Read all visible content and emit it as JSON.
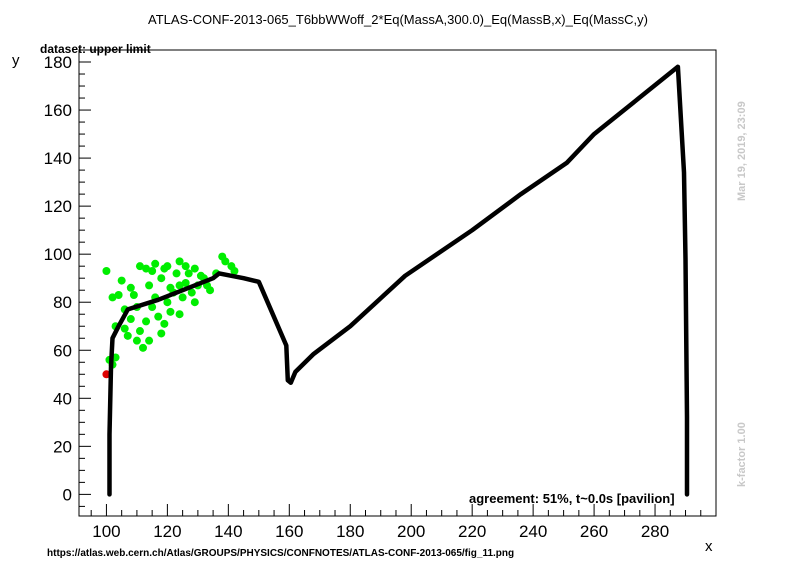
{
  "header": {
    "title": "ATLAS-CONF-2013-065_T6bbWWoff_2*Eq(MassA,300.0)_Eq(MassB,x)_Eq(MassC,y)",
    "dataset": "dataset: upper limit"
  },
  "footer": {
    "agreement": "agreement: 51%, t~0.0s [pavilion]",
    "url": "https://atlas.web.cern.ch/Atlas/GROUPS/PHYSICS/CONFNOTES/ATLAS-CONF-2013-065/fig_11.png"
  },
  "side": {
    "timestamp": "Mar 19, 2019, 23:09",
    "kfactor": "k-factor 1.00"
  },
  "colors": {
    "allowed_points": "#00ee00",
    "excluded_points": "#dd0000",
    "limit_curve": "#000000",
    "side_text": "#c8c8c8"
  },
  "chart_data": {
    "type": "scatter",
    "xlabel": "x",
    "ylabel": "y",
    "xlim": [
      91,
      300
    ],
    "ylim": [
      -9,
      185
    ],
    "x_ticks": [
      100,
      120,
      140,
      160,
      180,
      200,
      220,
      240,
      260,
      280
    ],
    "y_ticks": [
      0,
      20,
      40,
      60,
      80,
      100,
      120,
      140,
      160,
      180
    ],
    "grid": false,
    "series": [
      {
        "kind": "points",
        "color": "#00ee00",
        "points": [
          [
            100,
            93
          ],
          [
            101,
            56
          ],
          [
            102,
            54
          ],
          [
            103,
            57
          ],
          [
            103,
            70
          ],
          [
            102,
            82
          ],
          [
            104,
            83
          ],
          [
            105,
            89
          ],
          [
            106,
            77
          ],
          [
            106,
            69
          ],
          [
            107,
            66
          ],
          [
            108,
            73
          ],
          [
            108,
            86
          ],
          [
            109,
            83
          ],
          [
            110,
            64
          ],
          [
            110,
            78
          ],
          [
            111,
            68
          ],
          [
            111,
            95
          ],
          [
            112,
            61
          ],
          [
            113,
            94
          ],
          [
            113,
            72
          ],
          [
            114,
            64
          ],
          [
            114,
            87
          ],
          [
            115,
            78
          ],
          [
            115,
            93
          ],
          [
            116,
            82
          ],
          [
            116,
            96
          ],
          [
            117,
            74
          ],
          [
            118,
            67
          ],
          [
            118,
            90
          ],
          [
            119,
            94
          ],
          [
            119,
            71
          ],
          [
            120,
            80
          ],
          [
            120,
            95
          ],
          [
            121,
            86
          ],
          [
            121,
            76
          ],
          [
            122,
            84
          ],
          [
            123,
            92
          ],
          [
            124,
            97
          ],
          [
            124,
            87
          ],
          [
            124,
            75
          ],
          [
            125,
            82
          ],
          [
            126,
            95
          ],
          [
            126,
            88
          ],
          [
            127,
            92
          ],
          [
            128,
            84
          ],
          [
            129,
            94
          ],
          [
            129,
            80
          ],
          [
            130,
            87
          ],
          [
            131,
            91
          ],
          [
            132,
            90
          ],
          [
            133,
            87
          ],
          [
            134,
            85
          ],
          [
            136,
            92
          ],
          [
            138,
            99
          ],
          [
            139,
            97
          ],
          [
            141,
            95
          ],
          [
            142,
            93
          ]
        ]
      },
      {
        "kind": "points",
        "color": "#dd0000",
        "points": [
          [
            100,
            50
          ]
        ]
      },
      {
        "kind": "line",
        "color": "#000000",
        "points": [
          [
            101,
            0
          ],
          [
            101,
            25
          ],
          [
            101.5,
            53
          ],
          [
            102,
            65
          ],
          [
            104,
            70
          ],
          [
            107,
            77
          ],
          [
            117,
            81
          ],
          [
            127,
            86
          ],
          [
            135,
            90
          ],
          [
            137,
            92
          ],
          [
            145,
            90
          ],
          [
            150,
            88.5
          ],
          [
            159,
            62
          ],
          [
            159.5,
            47.5
          ],
          [
            160.5,
            46.5
          ],
          [
            162,
            51
          ],
          [
            168,
            58.5
          ],
          [
            180,
            70
          ],
          [
            198,
            91
          ],
          [
            220,
            110
          ],
          [
            236,
            125
          ],
          [
            251,
            138
          ],
          [
            260,
            150
          ],
          [
            287.5,
            178
          ],
          [
            289.5,
            134
          ],
          [
            290,
            98
          ],
          [
            290.5,
            32
          ],
          [
            290.5,
            0
          ]
        ]
      }
    ]
  }
}
